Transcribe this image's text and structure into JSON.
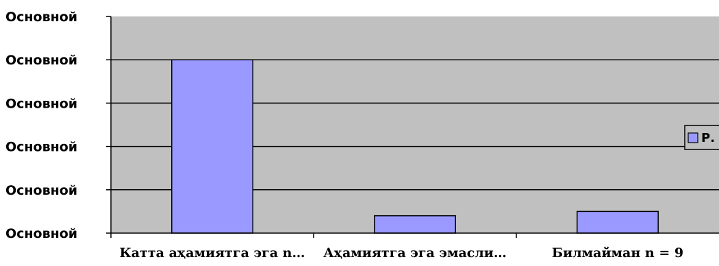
{
  "chart_data": {
    "type": "bar",
    "title": "",
    "xlabel": "",
    "ylabel": "",
    "categories": [
      "Катта аҳамиятга эга n…",
      "Аҳамиятга эга эмасли…",
      "Билмайман n = 9"
    ],
    "series": [
      {
        "name": "Р.",
        "values": [
          80,
          8,
          10
        ]
      }
    ],
    "ylim": [
      0,
      100
    ],
    "y_tick_values": [
      0,
      20,
      40,
      60,
      80,
      100
    ],
    "y_tick_labels": [
      "Основной",
      "Основной",
      "Основной",
      "Основной",
      "Основной",
      "Основной"
    ],
    "grid": true,
    "legend_position": "right",
    "colors": {
      "plot_background": "#c0c0c0",
      "bar_fill": "#9999ff",
      "bar_stroke": "#000000",
      "gridline": "#000000"
    }
  }
}
